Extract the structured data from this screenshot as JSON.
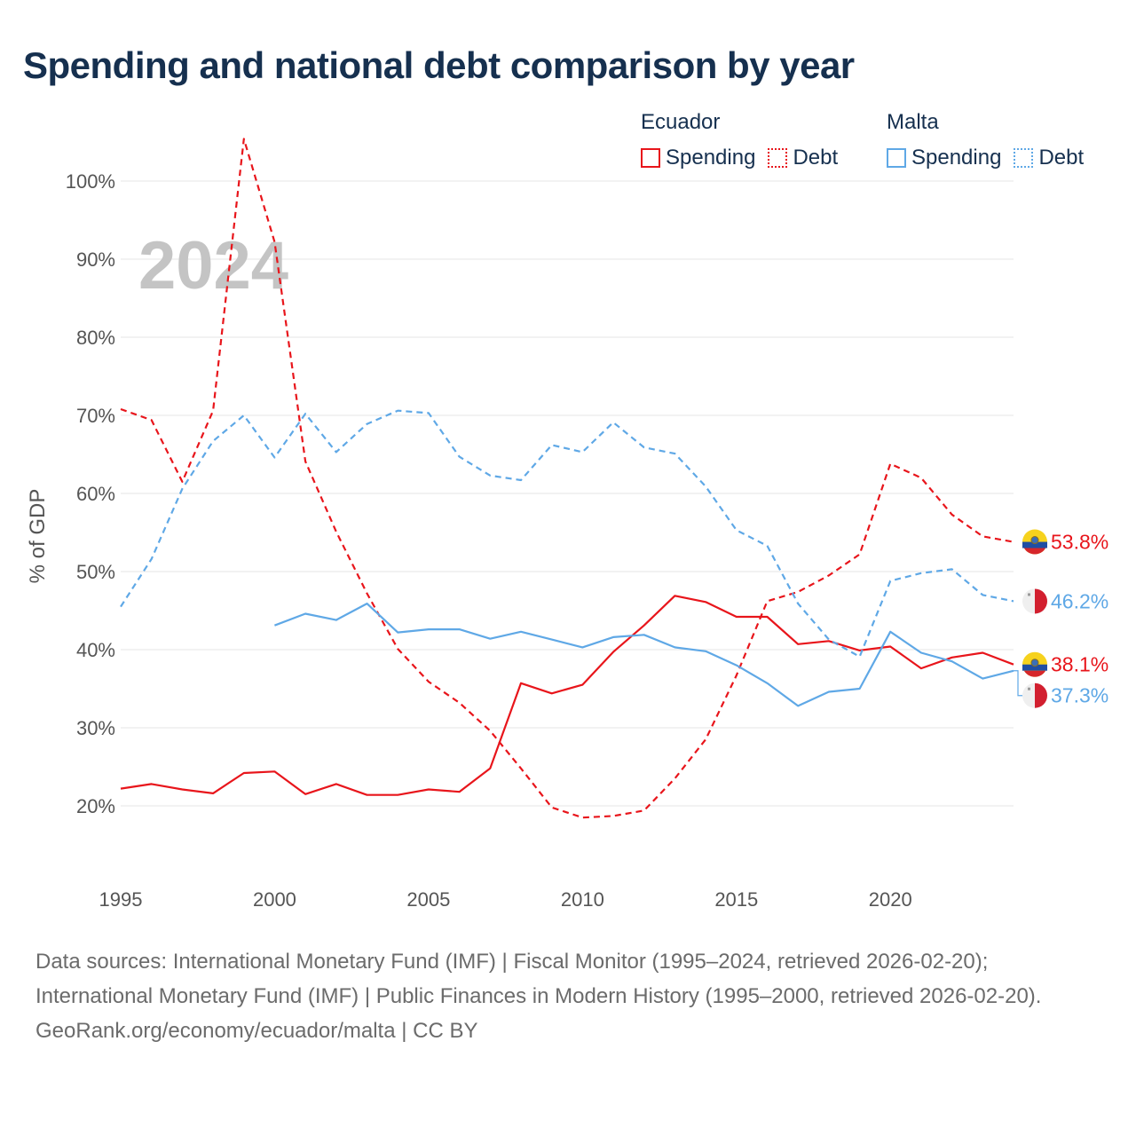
{
  "title": "Spending and national debt comparison by year",
  "legend": [
    {
      "country": "Ecuador",
      "items": [
        {
          "label": "Spending",
          "style": "solid",
          "color": "#e8151b"
        },
        {
          "label": "Debt",
          "style": "dotted",
          "color": "#e8151b"
        }
      ]
    },
    {
      "country": "Malta",
      "items": [
        {
          "label": "Spending",
          "style": "solid",
          "color": "#5fa8e6"
        },
        {
          "label": "Debt",
          "style": "dotted",
          "color": "#5fa8e6"
        }
      ]
    }
  ],
  "colors": {
    "ecuador": "#e8151b",
    "malta": "#5fa8e6",
    "grid": "#e6e6e6",
    "axis_text": "#555555",
    "watermark": "#c4c4c4"
  },
  "chart_data": {
    "type": "line",
    "year_label": "2024",
    "ylabel": "% of GDP",
    "xlim": [
      1995,
      2024
    ],
    "ylim": [
      10,
      105
    ],
    "x_ticks": [
      1995,
      2000,
      2005,
      2010,
      2015,
      2020
    ],
    "x_tick_labels": [
      "1995",
      "2000",
      "2005",
      "2010",
      "2015",
      "2020"
    ],
    "y_ticks": [
      20,
      30,
      40,
      50,
      60,
      70,
      80,
      90,
      100
    ],
    "y_tick_labels": [
      "20%",
      "30%",
      "40%",
      "50%",
      "60%",
      "70%",
      "80%",
      "90%",
      "100%"
    ],
    "series": [
      {
        "name": "Ecuador Spending",
        "country": "Ecuador",
        "metric": "Spending",
        "dash": "solid",
        "color": "#e8151b",
        "end_label": "38.1%",
        "x": [
          1995,
          1996,
          1997,
          1998,
          1999,
          2000,
          2001,
          2002,
          2003,
          2004,
          2005,
          2006,
          2007,
          2008,
          2009,
          2010,
          2011,
          2012,
          2013,
          2014,
          2015,
          2016,
          2017,
          2018,
          2019,
          2020,
          2021,
          2022,
          2023,
          2024
        ],
        "values": [
          22.2,
          22.8,
          22.1,
          21.6,
          24.2,
          24.4,
          21.5,
          22.8,
          21.4,
          21.4,
          22.1,
          21.8,
          24.8,
          35.7,
          34.4,
          35.5,
          39.7,
          43.1,
          46.9,
          46.1,
          44.2,
          44.2,
          40.7,
          41.1,
          39.9,
          40.4,
          37.6,
          39.0,
          39.6,
          38.1
        ]
      },
      {
        "name": "Ecuador Debt",
        "country": "Ecuador",
        "metric": "Debt",
        "dash": "dashed",
        "color": "#e8151b",
        "end_label": "53.8%",
        "x": [
          1995,
          1996,
          1997,
          1998,
          1999,
          2000,
          2001,
          2002,
          2003,
          2004,
          2005,
          2006,
          2007,
          2008,
          2009,
          2010,
          2011,
          2012,
          2013,
          2014,
          2015,
          2016,
          2017,
          2018,
          2019,
          2020,
          2021,
          2022,
          2023,
          2024
        ],
        "values": [
          70.8,
          69.4,
          61.5,
          70.6,
          105.4,
          92.2,
          64.1,
          55.1,
          47.2,
          40.1,
          35.9,
          33.2,
          29.6,
          24.8,
          19.8,
          18.5,
          18.7,
          19.4,
          23.5,
          28.5,
          36.7,
          46.2,
          47.4,
          49.5,
          52.2,
          63.8,
          62.0,
          57.3,
          54.5,
          53.8
        ]
      },
      {
        "name": "Malta Spending",
        "country": "Malta",
        "metric": "Spending",
        "dash": "solid",
        "color": "#5fa8e6",
        "end_label": "37.3%",
        "x": [
          2000,
          2001,
          2002,
          2003,
          2004,
          2005,
          2006,
          2007,
          2008,
          2009,
          2010,
          2011,
          2012,
          2013,
          2014,
          2015,
          2016,
          2017,
          2018,
          2019,
          2020,
          2021,
          2022,
          2023,
          2024
        ],
        "values": [
          43.1,
          44.6,
          43.8,
          45.9,
          42.2,
          42.6,
          42.6,
          41.4,
          42.3,
          41.3,
          40.3,
          41.6,
          41.9,
          40.3,
          39.8,
          38.0,
          35.7,
          32.8,
          34.6,
          35.0,
          42.3,
          39.6,
          38.5,
          36.3,
          37.3
        ]
      },
      {
        "name": "Malta Debt",
        "country": "Malta",
        "metric": "Debt",
        "dash": "dashed",
        "color": "#5fa8e6",
        "end_label": "46.2%",
        "x": [
          1995,
          1996,
          1997,
          1998,
          1999,
          2000,
          2001,
          2002,
          2003,
          2004,
          2005,
          2006,
          2007,
          2008,
          2009,
          2010,
          2011,
          2012,
          2013,
          2014,
          2015,
          2016,
          2017,
          2018,
          2019,
          2020,
          2021,
          2022,
          2023,
          2024
        ],
        "values": [
          45.5,
          51.6,
          60.6,
          66.7,
          70.0,
          64.6,
          70.2,
          65.3,
          68.9,
          70.6,
          70.3,
          64.7,
          62.3,
          61.7,
          66.2,
          65.3,
          69.1,
          65.9,
          65.1,
          60.9,
          55.3,
          53.3,
          45.9,
          41.3,
          39.1,
          48.8,
          49.8,
          50.3,
          47.0,
          46.2
        ]
      }
    ]
  },
  "footer": {
    "sources": "Data sources: International Monetary Fund (IMF) | Fiscal Monitor (1995–2024, retrieved 2026-02-20); International Monetary Fund (IMF) | Public Finances in Modern History (1995–2000, retrieved 2026-02-20).",
    "credit": "GeoRank.org/economy/ecuador/malta | CC BY"
  }
}
